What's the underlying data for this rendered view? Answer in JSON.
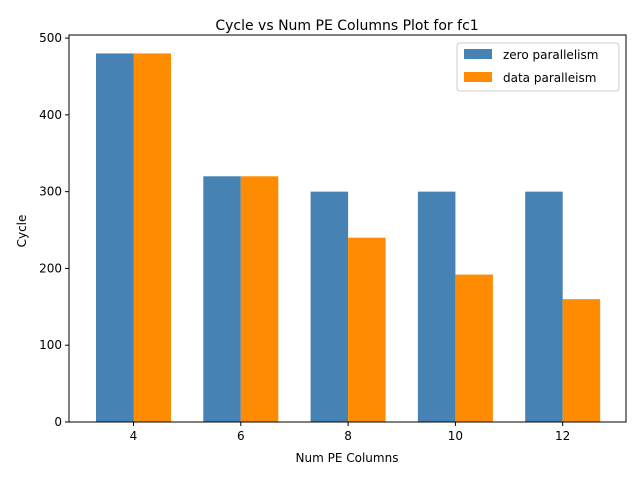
{
  "chart_data": {
    "type": "bar",
    "title": "Cycle vs Num PE Columns Plot for fc1",
    "xlabel": "Num PE Columns",
    "ylabel": "Cycle",
    "categories": [
      "4",
      "6",
      "8",
      "10",
      "12"
    ],
    "series": [
      {
        "name": "zero parallelism",
        "color": "#4682b4",
        "values": [
          480,
          320,
          300,
          300,
          300
        ]
      },
      {
        "name": "data paralleism",
        "color": "#ff8c00",
        "values": [
          480,
          320,
          240,
          192,
          160
        ]
      }
    ],
    "ylim": [
      0,
      504
    ],
    "yticks": [
      0,
      100,
      200,
      300,
      400,
      500
    ],
    "grid": false,
    "legend_position": "top-right"
  }
}
